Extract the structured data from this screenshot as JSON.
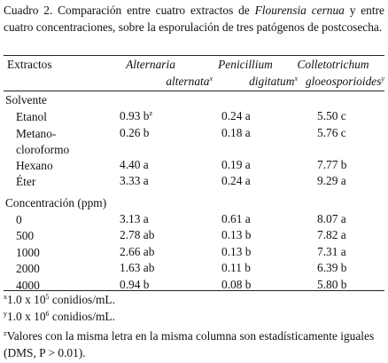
{
  "caption": {
    "prefix": "Cuadro 2. Comparación entre cuatro extractos de ",
    "species": "Flourensia cernua",
    "suffix": " y entre cuatro concentraciones, sobre la esporulación de tres patógenos de postcosecha."
  },
  "table": {
    "header": [
      {
        "lines": [
          "Extractos"
        ]
      },
      {
        "lines": [
          "Alternaria",
          "alternata"
        ],
        "note": "x"
      },
      {
        "lines": [
          "Penicillium",
          "digitatum"
        ],
        "note": "x"
      },
      {
        "lines": [
          "Colletotrichum",
          "gloeosporioides"
        ],
        "note": "y"
      }
    ],
    "sections": [
      {
        "title": "Solvente",
        "rows": [
          {
            "label": "Etanol",
            "cells": [
              "0.93 b",
              "0.24 a",
              "5.50 c"
            ],
            "note": "z"
          },
          {
            "label": "Metano-cloroformo",
            "cells": [
              "0.26 b",
              "0.18 a",
              "5.76 c"
            ]
          },
          {
            "label": "Hexano",
            "cells": [
              "4.40 a",
              "0.19 a",
              "7.77 b"
            ]
          },
          {
            "label": "Éter",
            "cells": [
              "3.33 a",
              "0.24 a",
              "9.29 a"
            ]
          }
        ]
      },
      {
        "title": "Concentración (ppm)",
        "rows": [
          {
            "label": "0",
            "cells": [
              "3.13 a",
              "0.61 a",
              "8.07 a"
            ]
          },
          {
            "label": "500",
            "cells": [
              "2.78 ab",
              "0.13 b",
              "7.82 a"
            ]
          },
          {
            "label": "1000",
            "cells": [
              "2.66 ab",
              "0.13 b",
              "7.31 a"
            ]
          },
          {
            "label": "2000",
            "cells": [
              "1.63 ab",
              "0.11 b",
              "6.39 b"
            ]
          },
          {
            "label": "4000",
            "cells": [
              "0.94 b",
              "0.08 b",
              "5.80 b"
            ]
          }
        ]
      }
    ]
  },
  "footnotes": [
    {
      "mark": "x",
      "text": "1.0 x 10",
      "exp": "5",
      "rest": " conidios/mL."
    },
    {
      "mark": "y",
      "text": "1.0 x 10",
      "exp": "6",
      "rest": " conidios/mL."
    },
    {
      "mark": "z",
      "text": "Valores con la misma letra en la misma columna son estadísticamente iguales (DMS, P > 0.01)."
    }
  ]
}
